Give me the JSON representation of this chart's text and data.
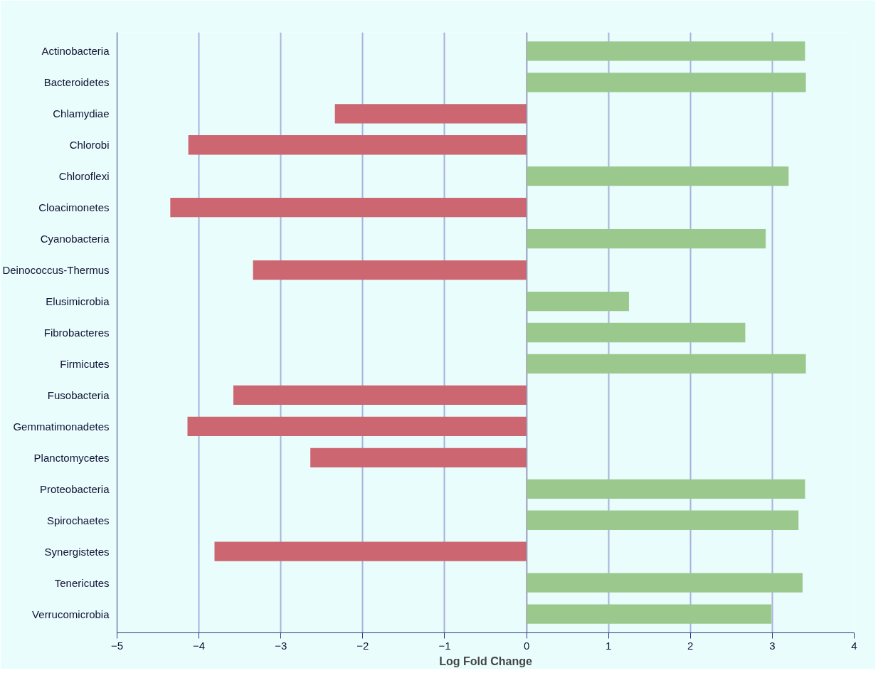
{
  "chart_data": {
    "type": "bar",
    "orientation": "horizontal",
    "xlabel": "Log Fold Change",
    "categories": [
      "Actinobacteria",
      "Bacteroidetes",
      "Chlamydiae",
      "Chlorobi",
      "Chloroflexi",
      "Cloacimonetes",
      "Cyanobacteria",
      "Deinococcus-Thermus",
      "Elusimicrobia",
      "Fibrobacteres",
      "Firmicutes",
      "Fusobacteria",
      "Gemmatimonadetes",
      "Planctomycetes",
      "Proteobacteria",
      "Spirochaetes",
      "Synergistetes",
      "Tenericutes",
      "Verrucomicrobia"
    ],
    "values": [
      3.4,
      3.41,
      -2.34,
      -4.13,
      3.2,
      -4.35,
      2.92,
      -3.34,
      1.25,
      2.67,
      3.41,
      -3.58,
      -4.14,
      -2.64,
      3.4,
      3.32,
      -3.81,
      3.37,
      2.99
    ],
    "colors": [
      "#9bc98d",
      "#9bc98d",
      "#cc6670",
      "#cc6670",
      "#9bc98d",
      "#cc6670",
      "#9bc98d",
      "#cc6670",
      "#9bc98d",
      "#9bc98d",
      "#9bc98d",
      "#cc6670",
      "#cc6670",
      "#cc6670",
      "#9bc98d",
      "#9bc98d",
      "#cc6670",
      "#9bc98d",
      "#9bc98d"
    ],
    "xlim": [
      -5,
      4
    ],
    "xticks": [
      -5,
      -4,
      -3,
      -2,
      -1,
      0,
      1,
      2,
      3,
      4
    ],
    "grid": "x"
  }
}
